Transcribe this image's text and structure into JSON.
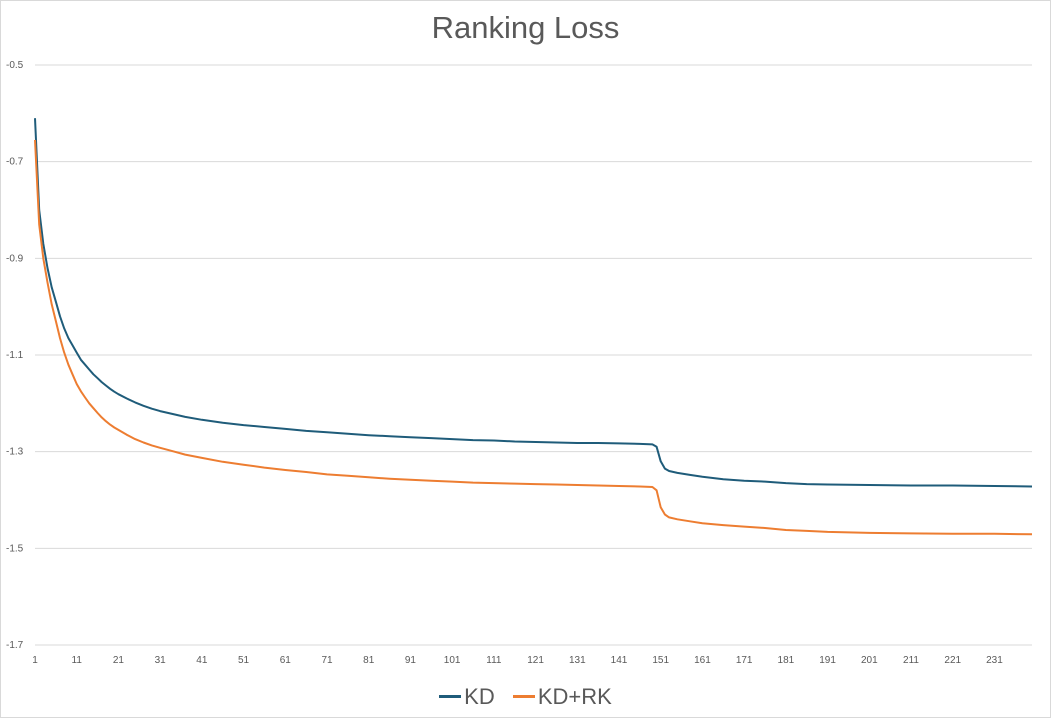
{
  "chart_data": {
    "type": "line",
    "title": "Ranking Loss",
    "xlabel": "",
    "ylabel": "",
    "x_range": [
      1,
      240
    ],
    "ylim": [
      -1.7,
      -0.5
    ],
    "y_ticks": [
      -0.5,
      -0.7,
      -0.9,
      -1.1,
      -1.3,
      -1.5,
      -1.7
    ],
    "y_tick_labels": [
      "-0.5",
      "-0.7",
      "-0.9",
      "-1.1",
      "-1.3",
      "-1.5",
      "-1.7"
    ],
    "x_ticks": [
      1,
      11,
      21,
      31,
      41,
      51,
      61,
      71,
      81,
      91,
      101,
      111,
      121,
      131,
      141,
      151,
      161,
      171,
      181,
      191,
      201,
      211,
      221,
      231
    ],
    "x_tick_labels": [
      "1",
      "11",
      "21",
      "31",
      "41",
      "51",
      "61",
      "71",
      "81",
      "91",
      "101",
      "111",
      "121",
      "131",
      "141",
      "151",
      "161",
      "171",
      "181",
      "191",
      "201",
      "211",
      "221",
      "231"
    ],
    "grid": "horizontal",
    "legend_position": "bottom",
    "series": [
      {
        "name": "KD",
        "color": "#1f5c7a",
        "points": [
          [
            1,
            -0.61
          ],
          [
            2,
            -0.8
          ],
          [
            3,
            -0.87
          ],
          [
            4,
            -0.92
          ],
          [
            5,
            -0.96
          ],
          [
            6,
            -0.99
          ],
          [
            7,
            -1.02
          ],
          [
            8,
            -1.045
          ],
          [
            9,
            -1.065
          ],
          [
            10,
            -1.08
          ],
          [
            11,
            -1.095
          ],
          [
            12,
            -1.11
          ],
          [
            13,
            -1.12
          ],
          [
            14,
            -1.13
          ],
          [
            15,
            -1.14
          ],
          [
            16,
            -1.148
          ],
          [
            17,
            -1.156
          ],
          [
            18,
            -1.163
          ],
          [
            19,
            -1.17
          ],
          [
            20,
            -1.176
          ],
          [
            21,
            -1.181
          ],
          [
            23,
            -1.19
          ],
          [
            25,
            -1.198
          ],
          [
            27,
            -1.205
          ],
          [
            29,
            -1.211
          ],
          [
            31,
            -1.216
          ],
          [
            34,
            -1.222
          ],
          [
            37,
            -1.228
          ],
          [
            41,
            -1.234
          ],
          [
            46,
            -1.24
          ],
          [
            51,
            -1.245
          ],
          [
            56,
            -1.249
          ],
          [
            61,
            -1.253
          ],
          [
            66,
            -1.257
          ],
          [
            71,
            -1.26
          ],
          [
            76,
            -1.263
          ],
          [
            81,
            -1.266
          ],
          [
            86,
            -1.268
          ],
          [
            91,
            -1.27
          ],
          [
            96,
            -1.272
          ],
          [
            101,
            -1.274
          ],
          [
            106,
            -1.276
          ],
          [
            111,
            -1.277
          ],
          [
            116,
            -1.279
          ],
          [
            121,
            -1.28
          ],
          [
            126,
            -1.281
          ],
          [
            131,
            -1.282
          ],
          [
            136,
            -1.282
          ],
          [
            141,
            -1.283
          ],
          [
            146,
            -1.284
          ],
          [
            149,
            -1.285
          ],
          [
            150,
            -1.29
          ],
          [
            151,
            -1.32
          ],
          [
            152,
            -1.335
          ],
          [
            153,
            -1.34
          ],
          [
            155,
            -1.344
          ],
          [
            158,
            -1.348
          ],
          [
            161,
            -1.352
          ],
          [
            166,
            -1.357
          ],
          [
            171,
            -1.36
          ],
          [
            176,
            -1.362
          ],
          [
            181,
            -1.365
          ],
          [
            186,
            -1.367
          ],
          [
            191,
            -1.368
          ],
          [
            201,
            -1.369
          ],
          [
            211,
            -1.37
          ],
          [
            221,
            -1.37
          ],
          [
            231,
            -1.371
          ],
          [
            240,
            -1.372
          ]
        ]
      },
      {
        "name": "KD+RK",
        "color": "#ed7d31",
        "points": [
          [
            1,
            -0.655
          ],
          [
            2,
            -0.83
          ],
          [
            3,
            -0.9
          ],
          [
            4,
            -0.95
          ],
          [
            5,
            -0.995
          ],
          [
            6,
            -1.03
          ],
          [
            7,
            -1.065
          ],
          [
            8,
            -1.095
          ],
          [
            9,
            -1.12
          ],
          [
            10,
            -1.14
          ],
          [
            11,
            -1.16
          ],
          [
            12,
            -1.175
          ],
          [
            13,
            -1.188
          ],
          [
            14,
            -1.2
          ],
          [
            15,
            -1.21
          ],
          [
            16,
            -1.22
          ],
          [
            17,
            -1.229
          ],
          [
            18,
            -1.237
          ],
          [
            19,
            -1.244
          ],
          [
            20,
            -1.25
          ],
          [
            21,
            -1.255
          ],
          [
            23,
            -1.265
          ],
          [
            25,
            -1.274
          ],
          [
            27,
            -1.281
          ],
          [
            29,
            -1.287
          ],
          [
            31,
            -1.292
          ],
          [
            34,
            -1.299
          ],
          [
            37,
            -1.306
          ],
          [
            41,
            -1.313
          ],
          [
            46,
            -1.321
          ],
          [
            51,
            -1.327
          ],
          [
            56,
            -1.333
          ],
          [
            61,
            -1.338
          ],
          [
            66,
            -1.342
          ],
          [
            71,
            -1.347
          ],
          [
            76,
            -1.35
          ],
          [
            81,
            -1.353
          ],
          [
            86,
            -1.356
          ],
          [
            91,
            -1.358
          ],
          [
            96,
            -1.36
          ],
          [
            101,
            -1.362
          ],
          [
            106,
            -1.364
          ],
          [
            111,
            -1.365
          ],
          [
            116,
            -1.366
          ],
          [
            121,
            -1.367
          ],
          [
            126,
            -1.368
          ],
          [
            131,
            -1.369
          ],
          [
            136,
            -1.37
          ],
          [
            141,
            -1.371
          ],
          [
            146,
            -1.372
          ],
          [
            149,
            -1.373
          ],
          [
            150,
            -1.38
          ],
          [
            151,
            -1.415
          ],
          [
            152,
            -1.43
          ],
          [
            153,
            -1.436
          ],
          [
            155,
            -1.44
          ],
          [
            158,
            -1.444
          ],
          [
            161,
            -1.448
          ],
          [
            166,
            -1.452
          ],
          [
            171,
            -1.455
          ],
          [
            176,
            -1.458
          ],
          [
            181,
            -1.462
          ],
          [
            186,
            -1.464
          ],
          [
            191,
            -1.466
          ],
          [
            201,
            -1.468
          ],
          [
            211,
            -1.469
          ],
          [
            221,
            -1.47
          ],
          [
            231,
            -1.47
          ],
          [
            240,
            -1.471
          ]
        ]
      }
    ]
  }
}
